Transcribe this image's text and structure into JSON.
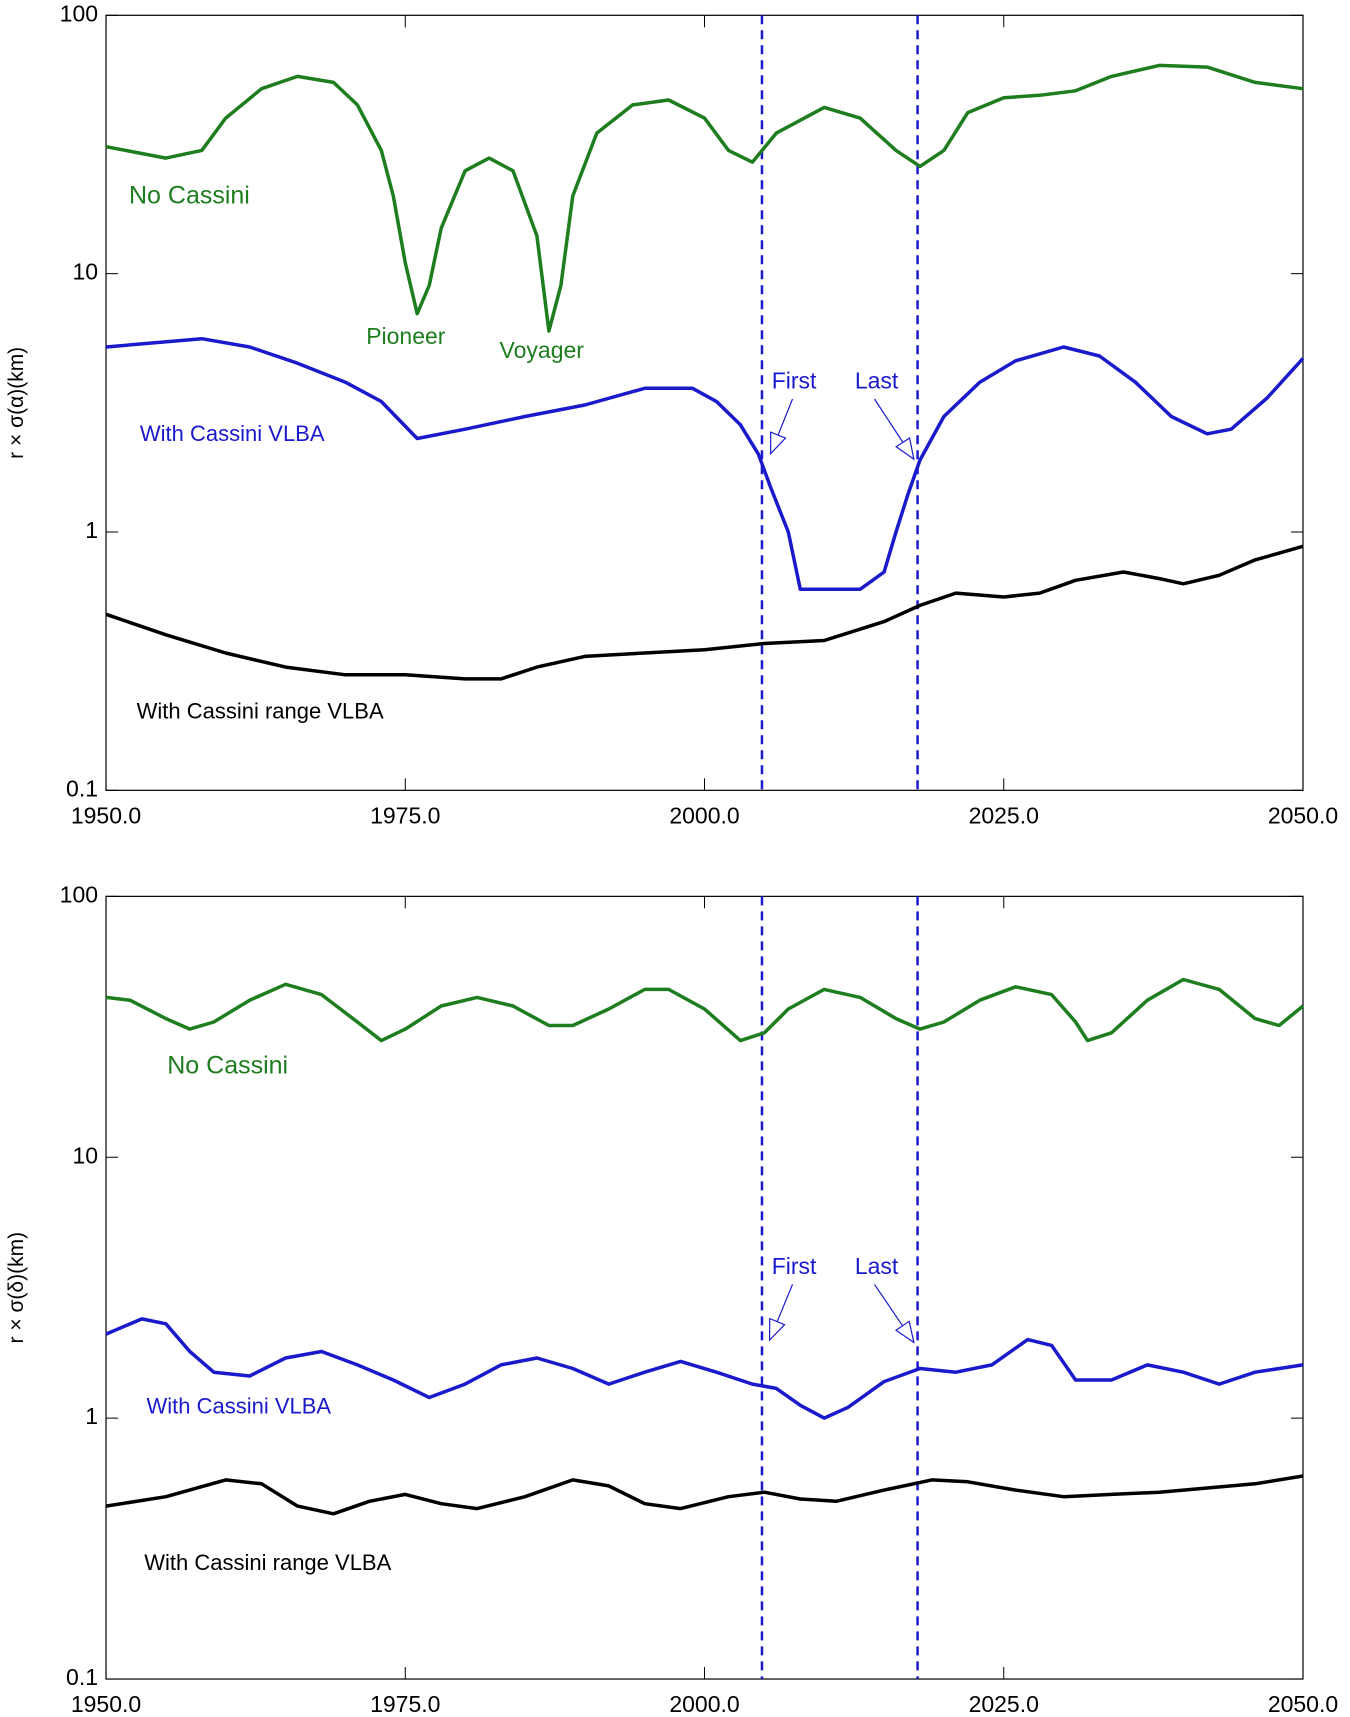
{
  "chart_data": [
    {
      "type": "line",
      "ylabel": "r × σ(α)(km)",
      "ylog": true,
      "xlim": [
        1950,
        2050
      ],
      "ylim": [
        0.1,
        100
      ],
      "xticks": [
        {
          "value": 1950,
          "label": "1950.0"
        },
        {
          "value": 1975,
          "label": "1975.0"
        },
        {
          "value": 2000,
          "label": "2000.0"
        },
        {
          "value": 2025,
          "label": "2025.0"
        },
        {
          "value": 2050,
          "label": "2050.0"
        }
      ],
      "yticks": [
        0.1,
        1,
        10,
        100
      ],
      "vlines": [
        2004.8,
        2017.8
      ],
      "vline_color": "#1a1acc",
      "annotations": [
        "Pioneer",
        "Voyager",
        "First",
        "Last"
      ],
      "series": [
        {
          "name": "No Cassini",
          "color": "#1e7d1e",
          "x": [
            1950,
            1955,
            1958,
            1960,
            1963,
            1966,
            1969,
            1971,
            1973,
            1974,
            1975,
            1976,
            1977,
            1978,
            1980,
            1982,
            1984,
            1986,
            1987,
            1988,
            1989,
            1991,
            1994,
            1997,
            2000,
            2002,
            2004,
            2006,
            2010,
            2013,
            2016,
            2018,
            2020,
            2022,
            2025,
            2028,
            2031,
            2034,
            2038,
            2042,
            2046,
            2050
          ],
          "values": [
            31,
            28,
            30,
            40,
            52,
            58,
            55,
            45,
            30,
            20,
            11,
            7,
            9,
            15,
            25,
            28,
            25,
            14,
            6,
            9,
            20,
            35,
            45,
            47,
            40,
            30,
            27,
            35,
            44,
            40,
            30,
            26,
            30,
            42,
            48,
            49,
            51,
            58,
            64,
            63,
            55,
            52
          ]
        },
        {
          "name": "With Cassini VLBA",
          "color": "#1a1acc",
          "x": [
            1950,
            1958,
            1962,
            1966,
            1970,
            1973,
            1976,
            1980,
            1985,
            1990,
            1995,
            1999,
            2001,
            2003,
            2004.5,
            2005.5,
            2007,
            2008,
            2010,
            2013,
            2015,
            2016,
            2017,
            2018,
            2020,
            2023,
            2026,
            2030,
            2033,
            2036,
            2039,
            2042,
            2044,
            2047,
            2050
          ],
          "values": [
            5.2,
            5.6,
            5.2,
            4.5,
            3.8,
            3.2,
            2.3,
            2.5,
            2.8,
            3.1,
            3.6,
            3.6,
            3.2,
            2.6,
            2.0,
            1.5,
            1.0,
            0.6,
            0.6,
            0.6,
            0.7,
            1.0,
            1.4,
            1.9,
            2.8,
            3.8,
            4.6,
            5.2,
            4.8,
            3.8,
            2.8,
            2.4,
            2.5,
            3.3,
            4.7
          ]
        },
        {
          "name": "With Cassini range VLBA",
          "color": "#000000",
          "x": [
            1950,
            1955,
            1960,
            1965,
            1970,
            1975,
            1980,
            1983,
            1986,
            1990,
            1995,
            2000,
            2005,
            2010,
            2015,
            2018,
            2021,
            2025,
            2028,
            2031,
            2035,
            2038,
            2040,
            2043,
            2046,
            2050
          ],
          "values": [
            0.48,
            0.4,
            0.34,
            0.3,
            0.28,
            0.28,
            0.27,
            0.27,
            0.3,
            0.33,
            0.34,
            0.35,
            0.37,
            0.38,
            0.45,
            0.52,
            0.58,
            0.56,
            0.58,
            0.65,
            0.7,
            0.66,
            0.63,
            0.68,
            0.78,
            0.88
          ]
        }
      ]
    },
    {
      "type": "line",
      "ylabel": "r × σ(δ)(km)",
      "ylog": true,
      "xlim": [
        1950,
        2050
      ],
      "ylim": [
        0.1,
        100
      ],
      "xticks": [
        {
          "value": 1950,
          "label": "1950.0"
        },
        {
          "value": 1975,
          "label": "1975.0"
        },
        {
          "value": 2000,
          "label": "2000.0"
        },
        {
          "value": 2025,
          "label": "2025.0"
        },
        {
          "value": 2050,
          "label": "2050.0"
        }
      ],
      "yticks": [
        0.1,
        1,
        10,
        100
      ],
      "vlines": [
        2004.8,
        2017.8
      ],
      "vline_color": "#1a1acc",
      "annotations": [
        "First",
        "Last"
      ],
      "series": [
        {
          "name": "No Cassini",
          "color": "#1e7d1e",
          "x": [
            1950,
            1952,
            1955,
            1957,
            1959,
            1962,
            1965,
            1968,
            1971,
            1973,
            1975,
            1978,
            1981,
            1984,
            1987,
            1989,
            1992,
            1995,
            1997,
            2000,
            2003,
            2005,
            2007,
            2010,
            2013,
            2016,
            2018,
            2020,
            2023,
            2026,
            2029,
            2031,
            2032,
            2034,
            2037,
            2040,
            2043,
            2046,
            2048,
            2050
          ],
          "values": [
            41,
            40,
            34,
            31,
            33,
            40,
            46,
            42,
            33,
            28,
            31,
            38,
            41,
            38,
            32,
            32,
            37,
            44,
            44,
            37,
            28,
            30,
            37,
            44,
            41,
            34,
            31,
            33,
            40,
            45,
            42,
            33,
            28,
            30,
            40,
            48,
            44,
            34,
            32,
            38
          ]
        },
        {
          "name": "With Cassini VLBA",
          "color": "#1a1acc",
          "x": [
            1950,
            1953,
            1955,
            1957,
            1959,
            1962,
            1965,
            1968,
            1971,
            1974,
            1977,
            1980,
            1983,
            1986,
            1989,
            1992,
            1995,
            1998,
            2001,
            2004,
            2006,
            2008,
            2010,
            2012,
            2015,
            2018,
            2021,
            2024,
            2027,
            2029,
            2031,
            2034,
            2037,
            2040,
            2043,
            2046,
            2050
          ],
          "values": [
            2.1,
            2.4,
            2.3,
            1.8,
            1.5,
            1.45,
            1.7,
            1.8,
            1.6,
            1.4,
            1.2,
            1.35,
            1.6,
            1.7,
            1.55,
            1.35,
            1.5,
            1.65,
            1.5,
            1.35,
            1.3,
            1.12,
            1.0,
            1.1,
            1.38,
            1.55,
            1.5,
            1.6,
            2.0,
            1.9,
            1.4,
            1.4,
            1.6,
            1.5,
            1.35,
            1.5,
            1.6
          ]
        },
        {
          "name": "With Cassini range VLBA",
          "color": "#000000",
          "x": [
            1950,
            1955,
            1960,
            1963,
            1966,
            1969,
            1972,
            1975,
            1978,
            1981,
            1985,
            1989,
            1992,
            1995,
            1998,
            2002,
            2005,
            2008,
            2011,
            2015,
            2019,
            2022,
            2026,
            2030,
            2034,
            2038,
            2042,
            2046,
            2050
          ],
          "values": [
            0.46,
            0.5,
            0.58,
            0.56,
            0.46,
            0.43,
            0.48,
            0.51,
            0.47,
            0.45,
            0.5,
            0.58,
            0.55,
            0.47,
            0.45,
            0.5,
            0.52,
            0.49,
            0.48,
            0.53,
            0.58,
            0.57,
            0.53,
            0.5,
            0.51,
            0.52,
            0.54,
            0.56,
            0.6
          ]
        }
      ]
    }
  ]
}
